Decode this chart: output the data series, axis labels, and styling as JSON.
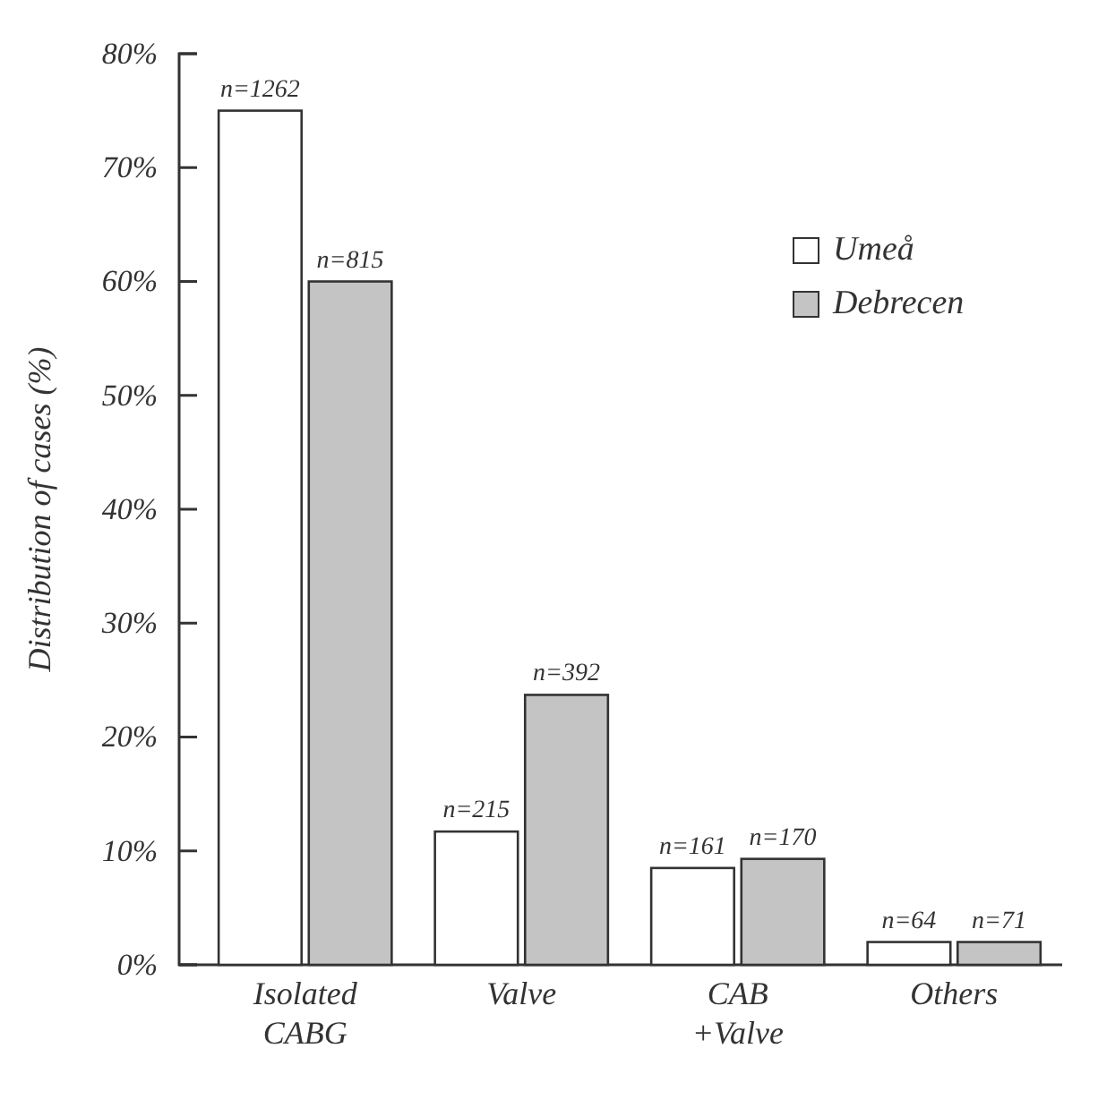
{
  "chart_data": {
    "type": "bar",
    "ylabel": "Distribution of cases (%)",
    "categories": [
      "Isolated CABG",
      "Valve",
      "CAB +Valve",
      "Others"
    ],
    "series": [
      {
        "name": "Umeå",
        "color": "#ffffff",
        "values": [
          75,
          11.7,
          8.5,
          2
        ]
      },
      {
        "name": "Debrecen",
        "color": "#c4c4c4",
        "values": [
          60,
          23.7,
          9.3,
          2
        ]
      }
    ],
    "annotations": [
      {
        "text": "n=1262",
        "x": "Isolated CABG",
        "y": 75
      },
      {
        "text": "n=815",
        "x": "Isolated CABG",
        "y": 60
      },
      {
        "text": "n=215",
        "x": "Valve",
        "y": 11.7
      },
      {
        "text": "n=392",
        "x": "Valve",
        "y": 23.7
      },
      {
        "text": "n=161",
        "x": "CAB +Valve",
        "y": 8.5
      },
      {
        "text": "n=170",
        "x": "CAB +Valve",
        "y": 9.3
      },
      {
        "text": "n=64",
        "x": "Others",
        "y": 2
      },
      {
        "text": "n=71",
        "x": "Others",
        "y": 2
      }
    ],
    "ylim": [
      0,
      80
    ],
    "yticks": [
      {
        "value": 0,
        "label": "0%"
      },
      {
        "value": 10,
        "label": "10%"
      },
      {
        "value": 20,
        "label": "20%"
      },
      {
        "value": 30,
        "label": "30%"
      },
      {
        "value": 40,
        "label": "40%"
      },
      {
        "value": 50,
        "label": "50%"
      },
      {
        "value": 60,
        "label": "60%"
      },
      {
        "value": 70,
        "label": "70%"
      },
      {
        "value": 80,
        "label": "80%"
      }
    ],
    "grid": false,
    "legend": "top right"
  }
}
